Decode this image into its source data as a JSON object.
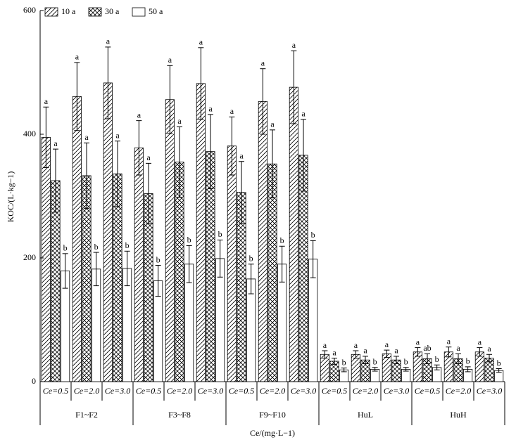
{
  "chart_data": {
    "type": "bar",
    "ylabel": "KOC/(L·kg−1)",
    "xlabel": "Ce/(mg·L−1)",
    "groups": [
      "F1~F2",
      "F3~F8",
      "F9~F10",
      "HuL",
      "HuH"
    ],
    "categories": [
      "Ce=0.5",
      "Ce=2.0",
      "Ce=3.0",
      "Ce=0.5",
      "Ce=2.0",
      "Ce=3.0",
      "Ce=0.5",
      "Ce=2.0",
      "Ce=3.0",
      "Ce=0.5",
      "Ce=2.0",
      "Ce=3.0",
      "Ce=0.5",
      "Ce=2.0",
      "Ce=3.0"
    ],
    "series": [
      {
        "name": "10 a",
        "pattern": "hatch",
        "color": "#000000",
        "values": [
          395,
          461,
          483,
          378,
          456,
          482,
          381,
          453,
          476,
          44,
          44,
          45,
          48,
          48,
          48
        ],
        "errors": [
          49,
          55,
          58,
          44,
          55,
          58,
          47,
          53,
          59,
          6,
          6,
          6,
          7,
          8,
          7
        ],
        "annotations": [
          "a",
          "a",
          "a",
          "a",
          "a",
          "a",
          "a",
          "a",
          "a",
          "a",
          "a",
          "a",
          "a",
          "a",
          "a"
        ]
      },
      {
        "name": "30 a",
        "pattern": "cross",
        "color": "#000000",
        "values": [
          325,
          333,
          336,
          304,
          355,
          372,
          306,
          352,
          366,
          33,
          35,
          35,
          37,
          37,
          38
        ],
        "errors": [
          51,
          53,
          53,
          49,
          57,
          60,
          50,
          55,
          58,
          5,
          6,
          6,
          8,
          8,
          6
        ],
        "annotations": [
          "a",
          "a",
          "a",
          "a",
          "a",
          "a",
          "a",
          "a",
          "a",
          "a",
          "a",
          "a",
          "ab",
          "a",
          "a"
        ]
      },
      {
        "name": "50 a",
        "pattern": "none",
        "color": "#000000",
        "values": [
          179,
          182,
          183,
          163,
          190,
          199,
          166,
          190,
          198,
          19,
          20,
          20,
          23,
          20,
          18
        ],
        "errors": [
          28,
          27,
          28,
          25,
          30,
          30,
          24,
          29,
          30,
          3,
          3,
          3,
          4,
          4,
          3
        ],
        "annotations": [
          "b",
          "b",
          "b",
          "b",
          "b",
          "b",
          "b",
          "b",
          "b",
          "b",
          "b",
          "b",
          "b",
          "b",
          "b"
        ]
      }
    ],
    "ylim": [
      0,
      600
    ],
    "yticks": [
      0,
      200,
      400,
      600
    ]
  }
}
